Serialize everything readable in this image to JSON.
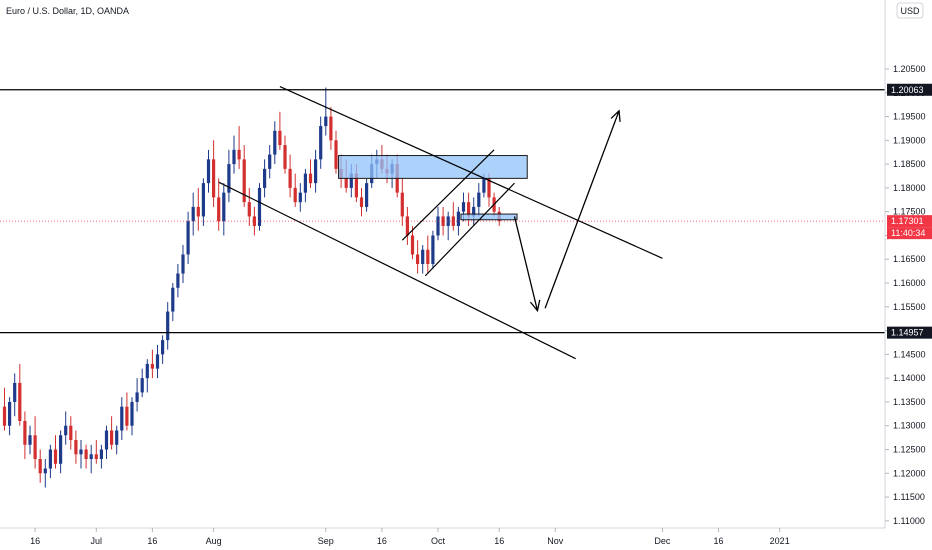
{
  "chart_data": {
    "type": "candlestick",
    "title": "Euro / U.S. Dollar, 1D, OANDA",
    "currency": "USD",
    "y_ticks": [
      1.205,
      1.2,
      1.195,
      1.19,
      1.185,
      1.18,
      1.175,
      1.17,
      1.165,
      1.16,
      1.155,
      1.15,
      1.145,
      1.14,
      1.135,
      1.13,
      1.125,
      1.12,
      1.115,
      1.11
    ],
    "y_tick_labels": [
      "1.20500",
      "1.20000",
      "1.19500",
      "1.19000",
      "1.18500",
      "1.18000",
      "1.17500",
      "1.17000",
      "1.16500",
      "1.16000",
      "1.15500",
      "1.15000",
      "1.14500",
      "1.14000",
      "1.13500",
      "1.13000",
      "1.12500",
      "1.12000",
      "1.11500",
      "1.11000"
    ],
    "ylim": [
      1.1085,
      1.2195
    ],
    "x_ticks": [
      {
        "label": "16",
        "bar": 6
      },
      {
        "label": "Jul",
        "bar": 18
      },
      {
        "label": "16",
        "bar": 29
      },
      {
        "label": "Aug",
        "bar": 41
      },
      {
        "label": "Sep",
        "bar": 63
      },
      {
        "label": "16",
        "bar": 74
      },
      {
        "label": "Oct",
        "bar": 85
      },
      {
        "label": "16",
        "bar": 97
      },
      {
        "label": "Nov",
        "bar": 108
      },
      {
        "label": "Dec",
        "bar": 129
      },
      {
        "label": "16",
        "bar": 140
      },
      {
        "label": "2021",
        "bar": 152
      }
    ],
    "bar_count_visible": 178,
    "up_color": "#1e3a8a",
    "down_color": "#d32f2f",
    "candles": [
      [
        1.134,
        1.138,
        1.129,
        1.13
      ],
      [
        1.13,
        1.136,
        1.128,
        1.135
      ],
      [
        1.135,
        1.141,
        1.132,
        1.139
      ],
      [
        1.139,
        1.143,
        1.13,
        1.131
      ],
      [
        1.131,
        1.133,
        1.123,
        1.126
      ],
      [
        1.126,
        1.13,
        1.124,
        1.128
      ],
      [
        1.128,
        1.132,
        1.121,
        1.123
      ],
      [
        1.123,
        1.125,
        1.118,
        1.12
      ],
      [
        1.12,
        1.123,
        1.117,
        1.121
      ],
      [
        1.121,
        1.126,
        1.119,
        1.125
      ],
      [
        1.125,
        1.128,
        1.121,
        1.122
      ],
      [
        1.122,
        1.129,
        1.12,
        1.128
      ],
      [
        1.128,
        1.133,
        1.126,
        1.13
      ],
      [
        1.13,
        1.132,
        1.125,
        1.127
      ],
      [
        1.127,
        1.129,
        1.122,
        1.124
      ],
      [
        1.124,
        1.127,
        1.121,
        1.125
      ],
      [
        1.125,
        1.126,
        1.121,
        1.123
      ],
      [
        1.123,
        1.126,
        1.12,
        1.124
      ],
      [
        1.124,
        1.127,
        1.122,
        1.123
      ],
      [
        1.123,
        1.126,
        1.121,
        1.125
      ],
      [
        1.125,
        1.13,
        1.123,
        1.129
      ],
      [
        1.129,
        1.132,
        1.125,
        1.126
      ],
      [
        1.126,
        1.13,
        1.124,
        1.129
      ],
      [
        1.129,
        1.136,
        1.127,
        1.134
      ],
      [
        1.134,
        1.137,
        1.129,
        1.13
      ],
      [
        1.13,
        1.136,
        1.128,
        1.135
      ],
      [
        1.135,
        1.14,
        1.133,
        1.137
      ],
      [
        1.137,
        1.142,
        1.136,
        1.14
      ],
      [
        1.14,
        1.144,
        1.137,
        1.143
      ],
      [
        1.143,
        1.146,
        1.14,
        1.142
      ],
      [
        1.142,
        1.147,
        1.14,
        1.145
      ],
      [
        1.145,
        1.149,
        1.143,
        1.148
      ],
      [
        1.148,
        1.156,
        1.146,
        1.154
      ],
      [
        1.154,
        1.16,
        1.152,
        1.159
      ],
      [
        1.159,
        1.164,
        1.157,
        1.162
      ],
      [
        1.162,
        1.168,
        1.16,
        1.166
      ],
      [
        1.166,
        1.175,
        1.164,
        1.173
      ],
      [
        1.173,
        1.179,
        1.17,
        1.176
      ],
      [
        1.176,
        1.18,
        1.171,
        1.174
      ],
      [
        1.174,
        1.182,
        1.172,
        1.181
      ],
      [
        1.181,
        1.188,
        1.179,
        1.186
      ],
      [
        1.186,
        1.19,
        1.176,
        1.178
      ],
      [
        1.178,
        1.182,
        1.171,
        1.173
      ],
      [
        1.173,
        1.181,
        1.17,
        1.179
      ],
      [
        1.179,
        1.188,
        1.177,
        1.185
      ],
      [
        1.185,
        1.191,
        1.183,
        1.188
      ],
      [
        1.188,
        1.193,
        1.184,
        1.186
      ],
      [
        1.186,
        1.189,
        1.176,
        1.177
      ],
      [
        1.177,
        1.18,
        1.172,
        1.174
      ],
      [
        1.174,
        1.176,
        1.17,
        1.172
      ],
      [
        1.172,
        1.181,
        1.171,
        1.18
      ],
      [
        1.18,
        1.186,
        1.178,
        1.184
      ],
      [
        1.184,
        1.189,
        1.182,
        1.187
      ],
      [
        1.187,
        1.194,
        1.185,
        1.192
      ],
      [
        1.192,
        1.196,
        1.188,
        1.189
      ],
      [
        1.189,
        1.191,
        1.183,
        1.184
      ],
      [
        1.184,
        1.187,
        1.178,
        1.18
      ],
      [
        1.18,
        1.183,
        1.176,
        1.177
      ],
      [
        1.177,
        1.181,
        1.175,
        1.179
      ],
      [
        1.179,
        1.184,
        1.177,
        1.183
      ],
      [
        1.183,
        1.186,
        1.18,
        1.181
      ],
      [
        1.181,
        1.188,
        1.179,
        1.186
      ],
      [
        1.186,
        1.195,
        1.184,
        1.193
      ],
      [
        1.193,
        1.2011,
        1.191,
        1.195
      ],
      [
        1.195,
        1.197,
        1.188,
        1.19
      ],
      [
        1.19,
        1.192,
        1.183,
        1.184
      ],
      [
        1.184,
        1.187,
        1.18,
        1.182
      ],
      [
        1.182,
        1.186,
        1.179,
        1.18
      ],
      [
        1.18,
        1.185,
        1.178,
        1.183
      ],
      [
        1.183,
        1.185,
        1.177,
        1.178
      ],
      [
        1.178,
        1.18,
        1.174,
        1.176
      ],
      [
        1.176,
        1.182,
        1.175,
        1.181
      ],
      [
        1.181,
        1.187,
        1.18,
        1.185
      ],
      [
        1.185,
        1.188,
        1.182,
        1.186
      ],
      [
        1.186,
        1.189,
        1.183,
        1.184
      ],
      [
        1.184,
        1.187,
        1.181,
        1.183
      ],
      [
        1.183,
        1.186,
        1.18,
        1.185
      ],
      [
        1.185,
        1.187,
        1.178,
        1.179
      ],
      [
        1.179,
        1.182,
        1.172,
        1.174
      ],
      [
        1.174,
        1.176,
        1.168,
        1.17
      ],
      [
        1.17,
        1.172,
        1.165,
        1.166
      ],
      [
        1.166,
        1.169,
        1.162,
        1.164
      ],
      [
        1.164,
        1.168,
        1.162,
        1.167
      ],
      [
        1.167,
        1.17,
        1.162,
        1.164
      ],
      [
        1.164,
        1.171,
        1.163,
        1.17
      ],
      [
        1.17,
        1.176,
        1.169,
        1.174
      ],
      [
        1.174,
        1.176,
        1.17,
        1.172
      ],
      [
        1.172,
        1.175,
        1.169,
        1.174
      ],
      [
        1.174,
        1.177,
        1.171,
        1.172
      ],
      [
        1.172,
        1.176,
        1.17,
        1.175
      ],
      [
        1.175,
        1.179,
        1.173,
        1.177
      ],
      [
        1.177,
        1.179,
        1.172,
        1.174
      ],
      [
        1.174,
        1.178,
        1.172,
        1.176
      ],
      [
        1.176,
        1.181,
        1.174,
        1.179
      ],
      [
        1.179,
        1.183,
        1.178,
        1.182
      ],
      [
        1.182,
        1.183,
        1.176,
        1.178
      ],
      [
        1.178,
        1.179,
        1.174,
        1.175
      ],
      [
        1.175,
        1.176,
        1.172,
        1.173
      ]
    ]
  },
  "price_axis": {
    "levels": [
      {
        "label": "1.20063",
        "value": 1.20063,
        "bg": "#131722",
        "text": "#ffffff"
      },
      {
        "label": "1.14957",
        "value": 1.14957,
        "bg": "#131722",
        "text": "#ffffff"
      },
      {
        "label": "1.17301",
        "value": 1.17301,
        "bg": "#f23645",
        "text": "#ffffff"
      }
    ],
    "countdown": {
      "label": "11:40:34",
      "bg": "#f23645",
      "text": "#ffffff"
    }
  },
  "drawings": {
    "hlines": [
      1.20063,
      1.14957
    ],
    "current_price": 1.17301,
    "zones": [
      {
        "x1": 65.5,
        "x2": 102.5,
        "y1": 1.1868,
        "y2": 1.182
      },
      {
        "x1": 89.5,
        "x2": 100.5,
        "y1": 1.1745,
        "y2": 1.1733
      }
    ],
    "trendlines": [
      {
        "x1": 54,
        "y1": 1.2013,
        "x2": 129,
        "y2": 1.1652
      },
      {
        "x1": 42,
        "y1": 1.1812,
        "x2": 112,
        "y2": 1.1441
      },
      {
        "x1": 78,
        "y1": 1.169,
        "x2": 96,
        "y2": 1.188
      },
      {
        "x1": 82.5,
        "y1": 1.1615,
        "x2": 100,
        "y2": 1.181
      }
    ],
    "arrows": [
      {
        "points": [
          [
            100,
            1.174
          ],
          [
            104.5,
            1.1542
          ]
        ]
      },
      {
        "points": [
          [
            106,
            1.1547
          ],
          [
            120.5,
            1.1962
          ]
        ]
      }
    ],
    "colors": {
      "line": "#000000",
      "zone_fill": "#90c2f9",
      "zone_border": "#1a1a1a",
      "grid": "#ffffff"
    }
  }
}
